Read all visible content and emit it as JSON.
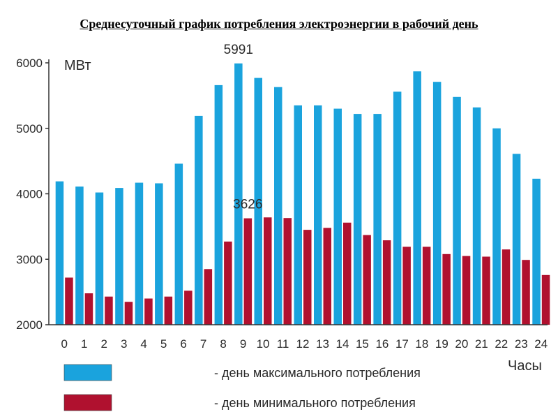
{
  "title": "Среднесуточный график потребления электроэнергии в рабочий день",
  "colors": {
    "max": "#1aa3dd",
    "min": "#b0112f",
    "axis": "#333333",
    "text": "#2b2b2b"
  },
  "chart_data": {
    "type": "bar",
    "title": "Среднесуточный график потребления электроэнергии в рабочий день",
    "ylabel": "МВт",
    "xlabel": "Часы",
    "ylim": [
      2000,
      6000
    ],
    "yticks": [
      2000,
      3000,
      4000,
      5000,
      6000
    ],
    "categories": [
      "0",
      "1",
      "2",
      "3",
      "4",
      "5",
      "6",
      "7",
      "8",
      "9",
      "10",
      "11",
      "12",
      "13",
      "14",
      "15",
      "16",
      "17",
      "18",
      "19",
      "20",
      "21",
      "22",
      "23",
      "24"
    ],
    "series": [
      {
        "name": "- день максимального потребления",
        "color": "#1aa3dd",
        "values": [
          4190,
          4110,
          4020,
          4090,
          4170,
          4160,
          4460,
          5190,
          5660,
          5991,
          5770,
          5630,
          5350,
          5350,
          5300,
          5220,
          5220,
          5560,
          5870,
          5710,
          5480,
          5320,
          5000,
          4610,
          4230
        ]
      },
      {
        "name": "- день минимального потребления",
        "color": "#b0112f",
        "values": [
          2720,
          2480,
          2430,
          2350,
          2400,
          2430,
          2520,
          2850,
          3270,
          3626,
          3640,
          3630,
          3450,
          3480,
          3560,
          3370,
          3290,
          3190,
          3190,
          3080,
          3050,
          3040,
          3150,
          2990,
          2760
        ]
      }
    ],
    "annotations": [
      {
        "text": "5991",
        "category": "9",
        "series": 0
      },
      {
        "text": "3626",
        "category": "9",
        "series": 1
      }
    ],
    "legend_position": "bottom",
    "grid": false
  }
}
